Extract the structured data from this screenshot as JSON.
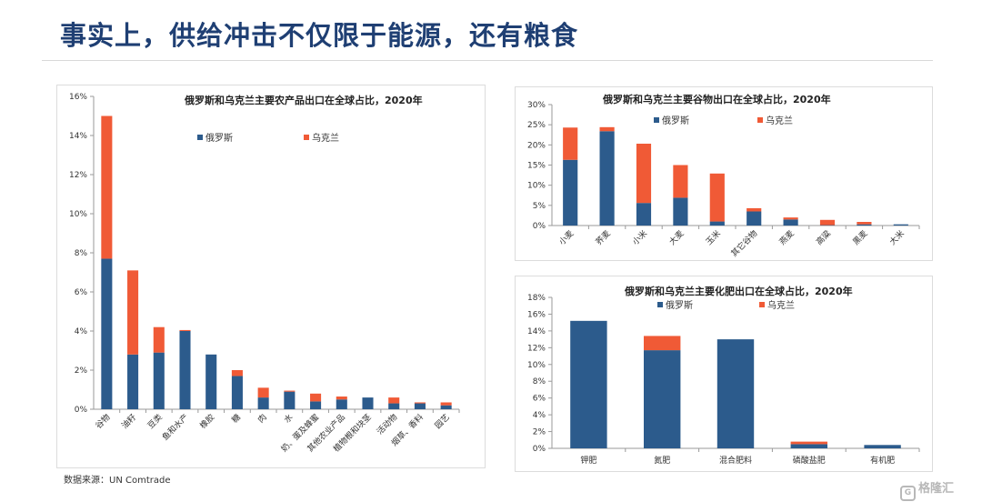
{
  "page": {
    "title": "事实上，供给冲击不仅限于能源，还有粮食",
    "source": "数据来源：UN Comtrade",
    "watermark": "格隆汇"
  },
  "colors": {
    "russia": "#2c5b8c",
    "ukraine": "#f05a36",
    "axis": "#9a9a9a"
  },
  "chart_data": [
    {
      "id": "agri",
      "type": "bar",
      "stacked": true,
      "title": "俄罗斯和乌克兰主要农产品出口在全球占比，2020年",
      "categories": [
        "谷物",
        "油籽",
        "豆类",
        "鱼和水产",
        "橡胶",
        "糖",
        "肉",
        "水",
        "奶、蛋及蜂蜜",
        "其他农业产品",
        "植物根和块茎",
        "活动物",
        "烟草、香料",
        "园艺"
      ],
      "series": [
        {
          "name": "俄罗斯",
          "values": [
            7.7,
            2.8,
            2.9,
            4.0,
            2.8,
            1.7,
            0.6,
            0.9,
            0.4,
            0.5,
            0.6,
            0.3,
            0.3,
            0.2
          ]
        },
        {
          "name": "乌克兰",
          "values": [
            7.3,
            4.3,
            1.3,
            0.05,
            0.0,
            0.3,
            0.5,
            0.05,
            0.4,
            0.15,
            0.0,
            0.3,
            0.05,
            0.15
          ]
        }
      ],
      "yticks": [
        "0%",
        "2%",
        "4%",
        "6%",
        "8%",
        "10%",
        "12%",
        "14%",
        "16%"
      ],
      "ylim": [
        0,
        16
      ]
    },
    {
      "id": "cereal",
      "type": "bar",
      "stacked": true,
      "title": "俄罗斯和乌克兰主要谷物出口在全球占比，2020年",
      "categories": [
        "小麦",
        "荞麦",
        "小米",
        "大麦",
        "玉米",
        "其它谷物",
        "燕麦",
        "高粱",
        "黑麦",
        "大米"
      ],
      "series": [
        {
          "name": "俄罗斯",
          "values": [
            16.3,
            23.4,
            5.6,
            6.9,
            1.0,
            3.5,
            1.5,
            0.1,
            0.3,
            0.3
          ]
        },
        {
          "name": "乌克兰",
          "values": [
            8.0,
            1.0,
            14.7,
            8.1,
            11.9,
            0.8,
            0.5,
            1.3,
            0.6,
            0.0
          ]
        }
      ],
      "yticks": [
        "0%",
        "5%",
        "10%",
        "15%",
        "20%",
        "25%",
        "30%"
      ],
      "ylim": [
        0,
        30
      ]
    },
    {
      "id": "fert",
      "type": "bar",
      "stacked": true,
      "title": "俄罗斯和乌克兰主要化肥出口在全球占比，2020年",
      "categories": [
        "钾肥",
        "氮肥",
        "混合肥料",
        "磷酸盐肥",
        "有机肥"
      ],
      "series": [
        {
          "name": "俄罗斯",
          "values": [
            15.2,
            11.7,
            13.0,
            0.5,
            0.4
          ]
        },
        {
          "name": "乌克兰",
          "values": [
            0.0,
            1.7,
            0.0,
            0.3,
            0.0
          ]
        }
      ],
      "yticks": [
        "0%",
        "2%",
        "4%",
        "6%",
        "8%",
        "10%",
        "12%",
        "14%",
        "16%",
        "18%"
      ],
      "ylim": [
        0,
        18
      ]
    }
  ]
}
